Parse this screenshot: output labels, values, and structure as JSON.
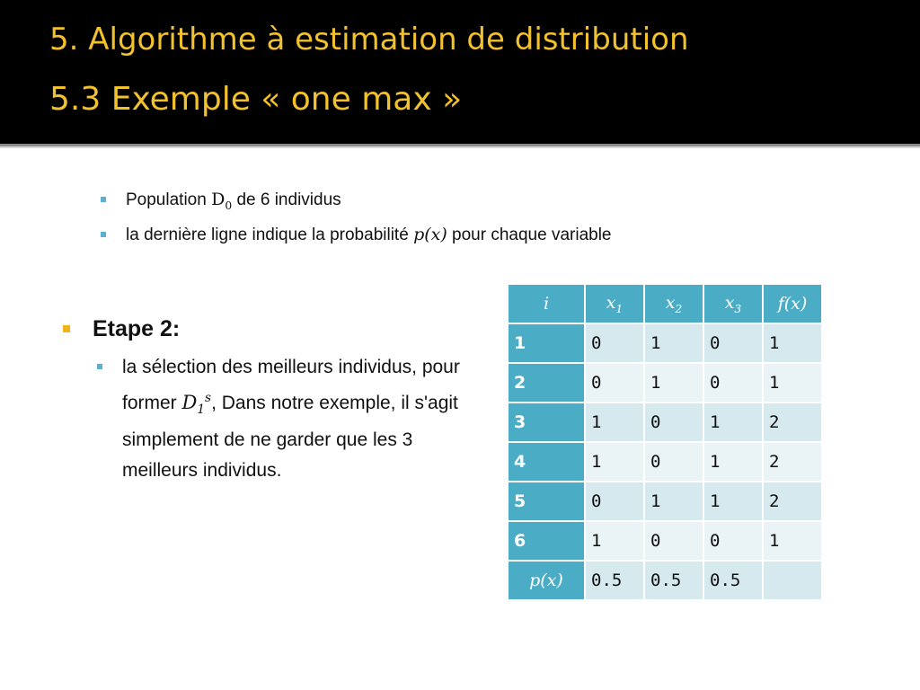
{
  "header": {
    "line1": "5. Algorithme à estimation de distribution",
    "line2": "5.3 Exemple « one max »"
  },
  "bullets": [
    {
      "before": "Population ",
      "math_base": "D",
      "math_sub": "0",
      "after": " de 6 individus"
    },
    {
      "before": "la dernière ligne indique la probabilité ",
      "math": "p(x)",
      "after": " pour chaque variable"
    }
  ],
  "step": {
    "heading": "Etape 2:",
    "text_before": "la sélection des meilleurs individus, pour former ",
    "math_base": "D",
    "math_sub": "1",
    "math_sup": "s",
    "text_after": ", Dans notre exemple, il s'agit simplement de ne garder que les 3 meilleurs individus."
  },
  "table": {
    "headers": [
      "i",
      "x1",
      "x2",
      "x3",
      "f(x)"
    ],
    "rows": [
      {
        "label": "1",
        "values": [
          "0",
          "1",
          "0",
          "1"
        ]
      },
      {
        "label": "2",
        "values": [
          "0",
          "1",
          "0",
          "1"
        ]
      },
      {
        "label": "3",
        "values": [
          "1",
          "0",
          "1",
          "2"
        ]
      },
      {
        "label": "4",
        "values": [
          "1",
          "0",
          "1",
          "2"
        ]
      },
      {
        "label": "5",
        "values": [
          "0",
          "1",
          "1",
          "2"
        ]
      },
      {
        "label": "6",
        "values": [
          "1",
          "0",
          "0",
          "1"
        ]
      }
    ],
    "prob_row": {
      "label": "p(x)",
      "values": [
        "0.5",
        "0.5",
        "0.5",
        ""
      ]
    }
  },
  "colors": {
    "title": "#f2c12e",
    "header_bg": "#000000",
    "table_header": "#4bacc6",
    "row_odd": "#d6e9ef",
    "row_even": "#eaf3f6",
    "bullet_small": "#5bb0cf",
    "bullet_main": "#f0b41a"
  }
}
